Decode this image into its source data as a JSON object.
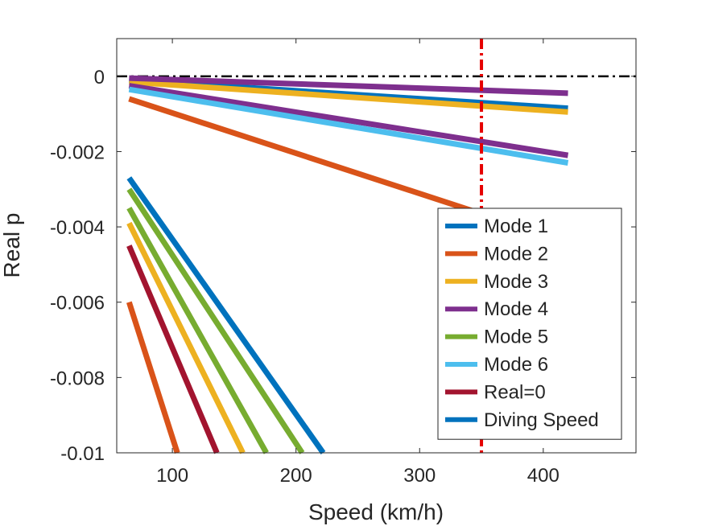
{
  "chart_data": {
    "type": "line",
    "title": "",
    "xlabel": "Speed (km/h)",
    "ylabel": "Real p",
    "xlim": [
      55,
      475
    ],
    "ylim": [
      -0.01,
      0.001
    ],
    "x_ticks": [
      100,
      200,
      300,
      400
    ],
    "y_ticks": [
      0,
      -0.002,
      -0.004,
      -0.006,
      -0.008,
      -0.01
    ],
    "x_tick_labels": [
      "100",
      "200",
      "300",
      "400"
    ],
    "y_tick_labels": [
      "0",
      "-0.002",
      "-0.004",
      "-0.006",
      "-0.008",
      "-0.01"
    ],
    "grid": false,
    "legend_position": "lower-right",
    "series": [
      {
        "name": "Mode 1",
        "color": "#0072BD",
        "segments": [
          [
            [
              65,
              -0.0001
            ],
            [
              420,
              -0.00085
            ]
          ],
          [
            [
              65,
              -0.0027
            ],
            [
              222,
              -0.01
            ]
          ]
        ]
      },
      {
        "name": "Mode 2",
        "color": "#D95319",
        "segments": [
          [
            [
              65,
              -0.0006
            ],
            [
              420,
              -0.0044
            ]
          ],
          [
            [
              65,
              -0.006
            ],
            [
              104,
              -0.01
            ]
          ]
        ]
      },
      {
        "name": "Mode 3",
        "color": "#EDB120",
        "segments": [
          [
            [
              65,
              -0.00015
            ],
            [
              420,
              -0.00095
            ]
          ],
          [
            [
              65,
              -0.0039
            ],
            [
              157,
              -0.01
            ]
          ]
        ]
      },
      {
        "name": "Mode 4",
        "color": "#7E2F8E",
        "segments": [
          [
            [
              65,
              -5e-05
            ],
            [
              420,
              -0.00045
            ]
          ],
          [
            [
              65,
              -0.00025
            ],
            [
              420,
              -0.0021
            ]
          ]
        ]
      },
      {
        "name": "Mode 5",
        "color": "#77AC30",
        "segments": [
          [
            [
              65,
              -0.003
            ],
            [
              205,
              -0.01
            ]
          ],
          [
            [
              65,
              -0.0035
            ],
            [
              176,
              -0.01
            ]
          ]
        ]
      },
      {
        "name": "Mode 6",
        "color": "#4DBEEE",
        "segments": [
          [
            [
              65,
              -0.00035
            ],
            [
              420,
              -0.0023
            ]
          ]
        ]
      },
      {
        "name": "Real=0",
        "color": "#A2142F",
        "segments": [
          [
            [
              65,
              -0.0045
            ],
            [
              136,
              -0.01
            ]
          ]
        ]
      },
      {
        "name": "Diving Speed",
        "color": "#0072BD",
        "segments": []
      }
    ],
    "reference_lines": [
      {
        "kind": "horizontal",
        "value": 0,
        "color": "#000000",
        "style": "dash-dot"
      },
      {
        "kind": "vertical",
        "value": 350,
        "color": "#E60000",
        "style": "dash-dot"
      }
    ]
  }
}
